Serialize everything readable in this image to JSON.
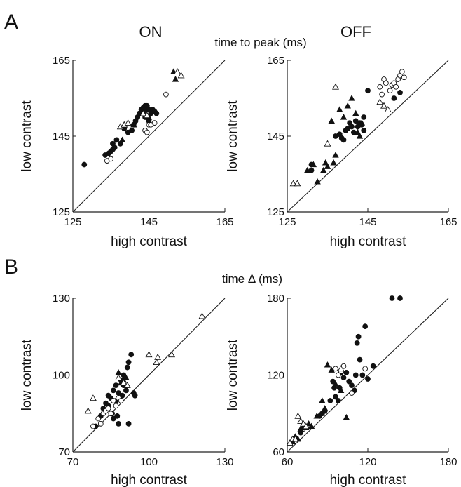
{
  "panel_labels": [
    "A",
    "B"
  ],
  "row_titles": [
    "time to peak (ms)",
    "time Δ (ms)"
  ],
  "column_titles": [
    "ON",
    "OFF"
  ],
  "chart_data": [
    {
      "type": "scatter",
      "row_title": "time to peak (ms)",
      "column_title": "ON",
      "xlabel": "high contrast",
      "ylabel": "low contrast",
      "xlim": [
        125,
        165
      ],
      "ylim": [
        125,
        165
      ],
      "xticks": [
        125,
        145,
        165
      ],
      "yticks": [
        125,
        145,
        165
      ],
      "identity_line": true,
      "series": [
        {
          "marker": "filled-circle",
          "points": [
            [
              128,
              137.5
            ],
            [
              133.5,
              140
            ],
            [
              134.5,
              140.5
            ],
            [
              135,
              141
            ],
            [
              135.5,
              141.5
            ],
            [
              136,
              142
            ],
            [
              135.5,
              143
            ],
            [
              136.5,
              144
            ],
            [
              137.5,
              143
            ],
            [
              138.5,
              147
            ],
            [
              139.5,
              146
            ],
            [
              140.5,
              146.5
            ],
            [
              141,
              148
            ],
            [
              141.5,
              149
            ],
            [
              142,
              150
            ],
            [
              142.5,
              151
            ],
            [
              143,
              152
            ],
            [
              143.5,
              152.5
            ],
            [
              144,
              153
            ],
            [
              144.5,
              153
            ],
            [
              145,
              152
            ],
            [
              145.5,
              151
            ],
            [
              146,
              152
            ],
            [
              146.5,
              151.5
            ],
            [
              147,
              151
            ],
            [
              143.5,
              151
            ],
            [
              144,
              150
            ],
            [
              145,
              149
            ]
          ]
        },
        {
          "marker": "open-circle",
          "points": [
            [
              134,
              138.5
            ],
            [
              135,
              139
            ],
            [
              144,
              146.5
            ],
            [
              144.5,
              146
            ],
            [
              145,
              148
            ],
            [
              145.5,
              148
            ],
            [
              146.5,
              148.5
            ],
            [
              149.5,
              156
            ]
          ]
        },
        {
          "marker": "filled-triangle",
          "points": [
            [
              138,
              144
            ],
            [
              141,
              148
            ],
            [
              144,
              152
            ],
            [
              145,
              150
            ],
            [
              151.5,
              162
            ],
            [
              152,
              160
            ]
          ]
        },
        {
          "marker": "open-triangle",
          "points": [
            [
              137.5,
              147.5
            ],
            [
              138.5,
              148
            ],
            [
              139.5,
              148.5
            ],
            [
              143.5,
              151
            ],
            [
              144.5,
              150.5
            ],
            [
              152.5,
              162
            ],
            [
              153.5,
              161
            ]
          ]
        }
      ]
    },
    {
      "type": "scatter",
      "row_title": "time to peak (ms)",
      "column_title": "OFF",
      "xlabel": "high contrast",
      "ylabel": "low contrast",
      "xlim": [
        125,
        165
      ],
      "ylim": [
        125,
        165
      ],
      "xticks": [
        125,
        145,
        165
      ],
      "yticks": [
        125,
        145,
        165
      ],
      "identity_line": true,
      "series": [
        {
          "marker": "filled-circle",
          "points": [
            [
              131,
              137.5
            ],
            [
              131,
              136
            ],
            [
              137,
              145
            ],
            [
              138,
              145.5
            ],
            [
              138.5,
              144.5
            ],
            [
              139,
              144
            ],
            [
              139.5,
              146.5
            ],
            [
              140,
              147
            ],
            [
              140.5,
              148.5
            ],
            [
              141,
              147.5
            ],
            [
              141.5,
              146
            ],
            [
              142,
              149
            ],
            [
              142.5,
              147.5
            ],
            [
              143,
              148.5
            ],
            [
              143.5,
              148
            ],
            [
              144,
              146.5
            ],
            [
              144,
              150
            ],
            [
              145,
              157
            ],
            [
              151.5,
              155
            ],
            [
              153,
              156.5
            ]
          ]
        },
        {
          "marker": "open-circle",
          "points": [
            [
              148,
              158
            ],
            [
              148.5,
              156
            ],
            [
              149,
              160
            ],
            [
              149.5,
              159
            ],
            [
              150.5,
              157
            ],
            [
              151,
              158.5
            ],
            [
              151.5,
              159
            ],
            [
              152,
              158
            ],
            [
              152.5,
              160
            ],
            [
              153,
              161
            ],
            [
              153.5,
              162
            ],
            [
              154,
              160.5
            ]
          ]
        },
        {
          "marker": "filled-triangle",
          "points": [
            [
              130,
              136
            ],
            [
              131.5,
              137.5
            ],
            [
              132.5,
              133
            ],
            [
              134,
              136
            ],
            [
              134.5,
              138
            ],
            [
              135,
              137
            ],
            [
              136.5,
              138
            ],
            [
              137,
              140
            ],
            [
              136,
              149
            ],
            [
              138,
              152
            ],
            [
              139,
              150
            ],
            [
              140,
              153
            ],
            [
              141,
              155
            ],
            [
              142,
              151
            ],
            [
              142.5,
              146
            ],
            [
              143.5,
              148.5
            ],
            [
              143,
              145
            ]
          ]
        },
        {
          "marker": "open-triangle",
          "points": [
            [
              126.5,
              132.5
            ],
            [
              127.5,
              132.5
            ],
            [
              135,
              143
            ],
            [
              137,
              158
            ],
            [
              148,
              154
            ],
            [
              149,
              153
            ],
            [
              150,
              152
            ]
          ]
        }
      ]
    },
    {
      "type": "scatter",
      "row_title": "time Δ (ms)",
      "column_title": "ON",
      "xlabel": "high contrast",
      "ylabel": "low contrast",
      "xlim": [
        70,
        130
      ],
      "ylim": [
        70,
        130
      ],
      "xticks": [
        70,
        100,
        130
      ],
      "yticks": [
        70,
        100,
        130
      ],
      "identity_line": true,
      "series": [
        {
          "marker": "filled-circle",
          "points": [
            [
              79,
              80
            ],
            [
              81,
              84
            ],
            [
              82,
              87
            ],
            [
              83,
              89
            ],
            [
              84,
              88
            ],
            [
              84,
              92
            ],
            [
              85,
              91
            ],
            [
              85.5,
              85
            ],
            [
              86,
              83
            ],
            [
              86,
              94
            ],
            [
              87,
              90
            ],
            [
              87,
              96
            ],
            [
              87.5,
              84
            ],
            [
              88,
              81
            ],
            [
              88,
              93
            ],
            [
              89,
              98
            ],
            [
              89.5,
              92
            ],
            [
              90,
              96
            ],
            [
              90,
              100
            ],
            [
              91,
              94
            ],
            [
              91.5,
              103
            ],
            [
              92,
              81
            ],
            [
              92,
              105
            ],
            [
              93,
              108
            ],
            [
              94,
              93
            ],
            [
              94.5,
              92
            ]
          ]
        },
        {
          "marker": "open-circle",
          "points": [
            [
              78,
              80
            ],
            [
              80,
              83
            ],
            [
              81,
              81
            ],
            [
              82,
              85
            ],
            [
              83,
              86
            ],
            [
              84,
              87
            ],
            [
              85,
              85
            ],
            [
              86,
              90
            ],
            [
              87,
              88
            ],
            [
              88,
              91
            ],
            [
              89,
              90
            ]
          ]
        },
        {
          "marker": "filled-triangle",
          "points": [
            [
              88,
              101
            ],
            [
              89,
              97
            ],
            [
              90,
              98
            ],
            [
              91,
              99
            ]
          ]
        },
        {
          "marker": "open-triangle",
          "points": [
            [
              76,
              86
            ],
            [
              78,
              91
            ],
            [
              88,
              99
            ],
            [
              90,
              97
            ],
            [
              91.5,
              96
            ],
            [
              100,
              108
            ],
            [
              103,
              105
            ],
            [
              103.5,
              107
            ],
            [
              109,
              108
            ],
            [
              121,
              123
            ]
          ]
        }
      ]
    },
    {
      "type": "scatter",
      "row_title": "time Δ (ms)",
      "column_title": "OFF",
      "xlabel": "high contrast",
      "ylabel": "low contrast",
      "xlim": [
        60,
        180
      ],
      "ylim": [
        60,
        180
      ],
      "xticks": [
        60,
        120,
        180
      ],
      "yticks": [
        60,
        120,
        180
      ],
      "identity_line": true,
      "series": [
        {
          "marker": "filled-circle",
          "points": [
            [
              66,
              71
            ],
            [
              70,
              75
            ],
            [
              84,
              88
            ],
            [
              86,
              90
            ],
            [
              88,
              92
            ],
            [
              92,
              100
            ],
            [
              94,
              115
            ],
            [
              95,
              110
            ],
            [
              96,
              103
            ],
            [
              98,
              100
            ],
            [
              99,
              110
            ],
            [
              100,
              122
            ],
            [
              102,
              118
            ],
            [
              104,
              122
            ],
            [
              106,
              115
            ],
            [
              108,
              112
            ],
            [
              110,
              108
            ],
            [
              111,
              120
            ],
            [
              112,
              145
            ],
            [
              113,
              150
            ],
            [
              114,
              132
            ],
            [
              116,
              120
            ],
            [
              118,
              158
            ],
            [
              120,
              117
            ],
            [
              124,
              127
            ],
            [
              138,
              180
            ],
            [
              144,
              180
            ]
          ]
        },
        {
          "marker": "open-circle",
          "points": [
            [
              72,
              78
            ],
            [
              76,
              80
            ],
            [
              96,
              125
            ],
            [
              98,
              120
            ],
            [
              100,
              123
            ],
            [
              102,
              127
            ],
            [
              108,
              106
            ],
            [
              118,
              125
            ]
          ]
        },
        {
          "marker": "filled-triangle",
          "points": [
            [
              64,
              68
            ],
            [
              66,
              72
            ],
            [
              68,
              70
            ],
            [
              70,
              78
            ],
            [
              72,
              80
            ],
            [
              74,
              79
            ],
            [
              76,
              82
            ],
            [
              78,
              80
            ],
            [
              82,
              88
            ],
            [
              86,
              100
            ],
            [
              88,
              94
            ],
            [
              90,
              128
            ],
            [
              93,
              124
            ],
            [
              96,
              113
            ],
            [
              100,
              108
            ],
            [
              104,
              87
            ]
          ]
        },
        {
          "marker": "open-triangle",
          "points": [
            [
              62,
              67
            ],
            [
              64,
              70
            ],
            [
              66,
              70
            ],
            [
              68,
              88
            ],
            [
              70,
              84
            ],
            [
              72,
              82
            ],
            [
              74,
              80
            ],
            [
              100,
              125
            ]
          ]
        }
      ]
    }
  ]
}
